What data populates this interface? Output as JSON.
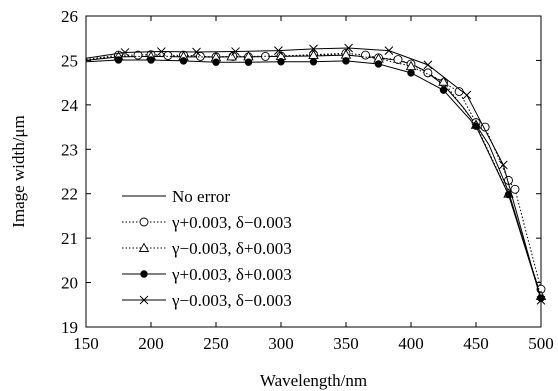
{
  "chart_data": {
    "type": "line",
    "title": "",
    "xlabel": "Wavelength/nm",
    "ylabel": "Image width/μm",
    "xlim": [
      150,
      500
    ],
    "ylim": [
      19,
      26
    ],
    "xticks": [
      150,
      200,
      250,
      300,
      350,
      400,
      450,
      500
    ],
    "yticks": [
      19,
      20,
      21,
      22,
      23,
      24,
      25,
      26
    ],
    "grid": false,
    "legend_position": "bottom-left",
    "series": [
      {
        "name": "No error",
        "line_style": "solid",
        "marker": "none",
        "x": [
          150,
          175,
          200,
          225,
          250,
          275,
          300,
          325,
          350,
          375,
          390,
          400,
          410,
          425,
          440,
          450,
          460,
          475,
          490,
          500
        ],
        "y": [
          25.0,
          25.08,
          25.09,
          25.08,
          25.08,
          25.08,
          25.09,
          25.1,
          25.12,
          25.06,
          25.0,
          24.92,
          24.78,
          24.45,
          23.95,
          23.55,
          23.1,
          22.05,
          20.6,
          19.7
        ]
      },
      {
        "name": "γ+0.003, δ−0.003",
        "line_style": "dotted",
        "marker": "circle",
        "x": [
          150,
          175,
          190,
          200,
          213,
          225,
          238,
          250,
          263,
          275,
          288,
          300,
          325,
          350,
          365,
          375,
          390,
          400,
          413,
          425,
          437,
          450,
          457,
          475,
          480,
          500
        ],
        "y": [
          25.02,
          25.12,
          25.12,
          25.13,
          25.11,
          25.12,
          25.09,
          25.08,
          25.09,
          25.08,
          25.09,
          25.1,
          25.13,
          25.16,
          25.12,
          25.06,
          25.02,
          24.92,
          24.72,
          24.5,
          24.3,
          23.6,
          23.5,
          22.3,
          22.1,
          19.85
        ]
      },
      {
        "name": "γ−0.003, δ+0.003",
        "line_style": "dotted",
        "marker": "triangle",
        "x": [
          150,
          175,
          200,
          225,
          250,
          262,
          275,
          300,
          325,
          350,
          375,
          400,
          425,
          450,
          475,
          500
        ],
        "y": [
          25.02,
          25.09,
          25.09,
          25.09,
          25.07,
          25.09,
          25.09,
          25.1,
          25.12,
          25.13,
          25.04,
          24.87,
          24.52,
          23.55,
          22.0,
          19.7
        ]
      },
      {
        "name": "γ+0.003, δ+0.003",
        "line_style": "solid",
        "marker": "filled-circle",
        "x": [
          150,
          175,
          200,
          225,
          250,
          275,
          300,
          325,
          350,
          375,
          400,
          425,
          450,
          475,
          500
        ],
        "y": [
          24.97,
          25.01,
          25.01,
          24.99,
          24.96,
          24.96,
          24.97,
          24.97,
          24.99,
          24.92,
          24.72,
          24.33,
          23.52,
          21.98,
          19.65
        ]
      },
      {
        "name": "γ−0.003, δ−0.003",
        "line_style": "solid",
        "marker": "cross",
        "x": [
          150,
          180,
          208,
          235,
          265,
          298,
          325,
          352,
          383,
          413,
          443,
          471,
          500
        ],
        "y": [
          25.05,
          25.18,
          25.2,
          25.19,
          25.2,
          25.22,
          25.26,
          25.28,
          25.22,
          24.9,
          24.22,
          22.65,
          19.6
        ]
      }
    ]
  }
}
